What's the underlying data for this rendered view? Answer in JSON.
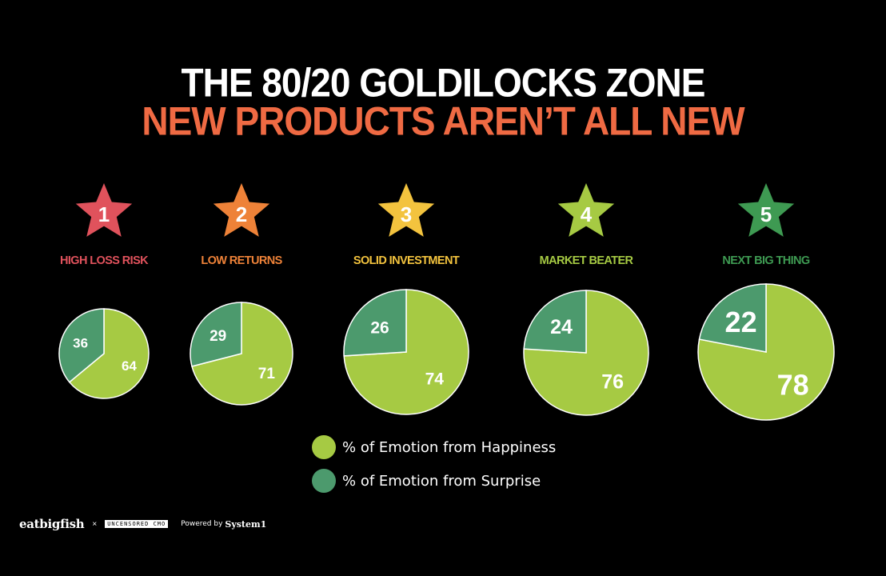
{
  "title": {
    "line1": "THE 80/20 GOLDILOCKS ZONE",
    "line2": "NEW PRODUCTS AREN’T ALL NEW"
  },
  "colors": {
    "happiness": "#a6ca43",
    "surprise": "#4c9a6d",
    "title_accent": "#ef6a43",
    "pie_stroke": "#ffffff"
  },
  "chart_data": {
    "type": "pie",
    "series": [
      {
        "name": "% of Emotion from Happiness",
        "color": "#a6ca43"
      },
      {
        "name": "% of Emotion from Surprise",
        "color": "#4c9a6d"
      }
    ],
    "groups": [
      {
        "rank": "1",
        "label": "HIGH LOSS RISK",
        "color": "#e0525c",
        "values": [
          64,
          36
        ]
      },
      {
        "rank": "2",
        "label": "LOW RETURNS",
        "color": "#ee8238",
        "values": [
          71,
          29
        ]
      },
      {
        "rank": "3",
        "label": "SOLID INVESTMENT",
        "color": "#f3c33e",
        "values": [
          74,
          26
        ]
      },
      {
        "rank": "4",
        "label": "MARKET BEATER",
        "color": "#a6ca43",
        "values": [
          76,
          24
        ]
      },
      {
        "rank": "5",
        "label": "NEXT BIG THING",
        "color": "#3e9a52",
        "values": [
          78,
          22
        ]
      }
    ]
  },
  "legend": [
    {
      "label": "% of Emotion from Happiness",
      "color": "#a6ca43"
    },
    {
      "label": "% of Emotion from  Surprise",
      "color": "#4c9a6d"
    }
  ],
  "footer": {
    "brand": "eatbigfish",
    "separator": "×",
    "partner": "UNCENSORED CMO",
    "powered_by": "Powered by",
    "system": "System1"
  }
}
